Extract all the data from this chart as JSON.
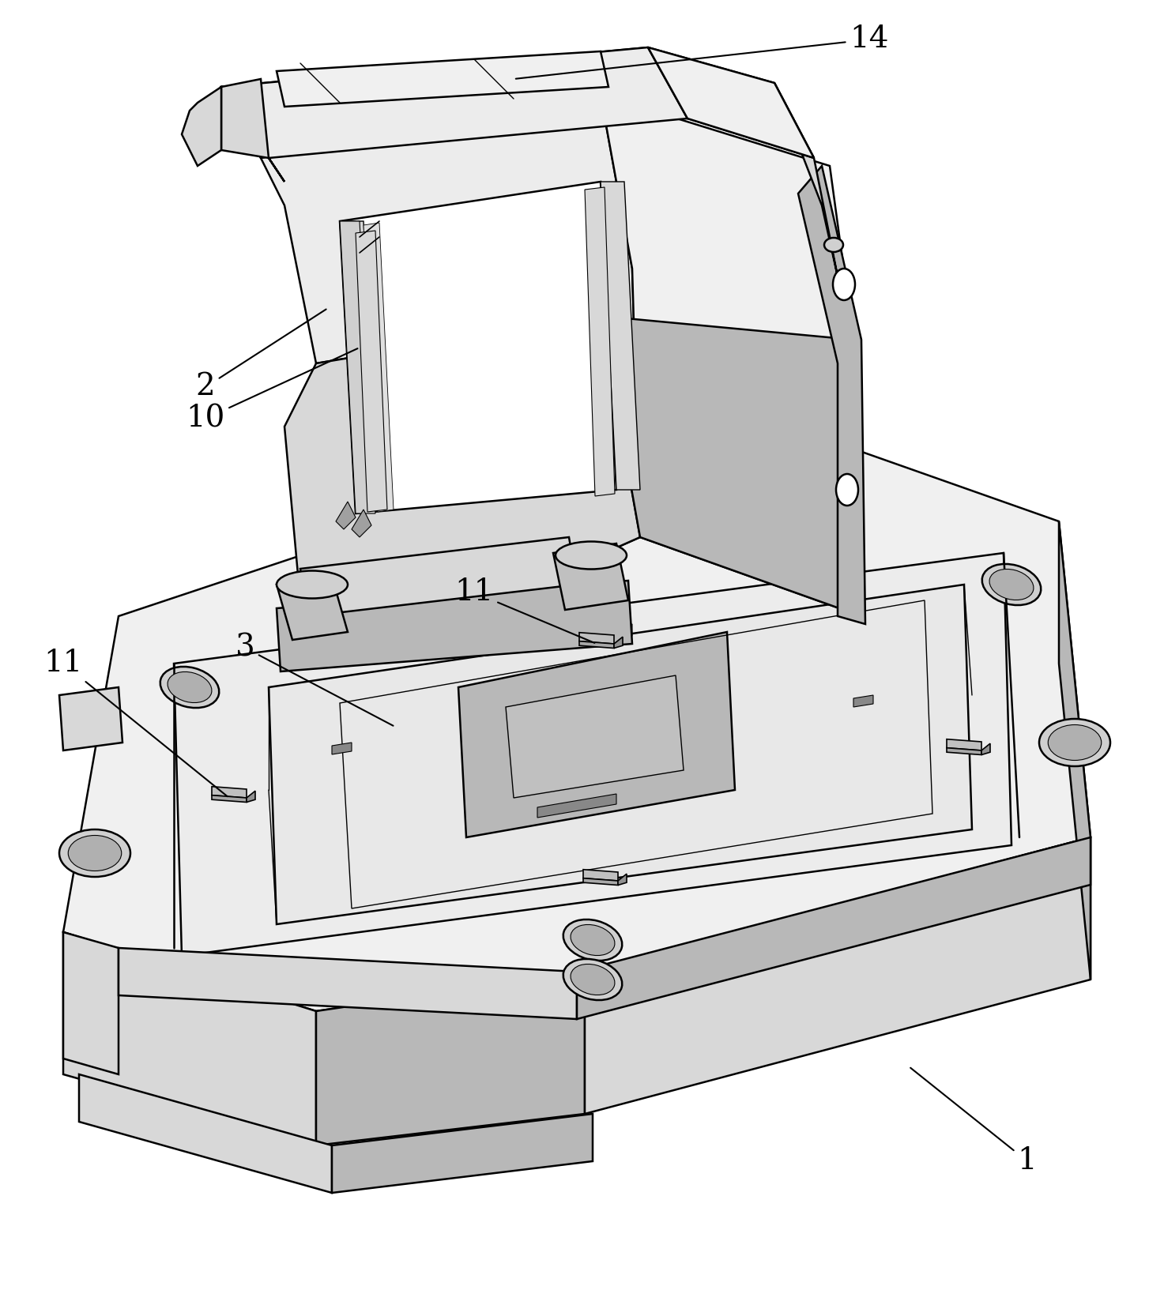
{
  "background_color": "#ffffff",
  "line_color": "#000000",
  "lw_main": 1.8,
  "lw_detail": 1.0,
  "lw_thin": 0.7,
  "figure_width": 14.54,
  "figure_height": 16.52,
  "dpi": 100,
  "gray_light": "#f0f0f0",
  "gray_mid": "#d8d8d8",
  "gray_dark": "#b8b8b8",
  "gray_inner": "#e8e8e8",
  "gray_face": "#ececec",
  "white": "#ffffff"
}
